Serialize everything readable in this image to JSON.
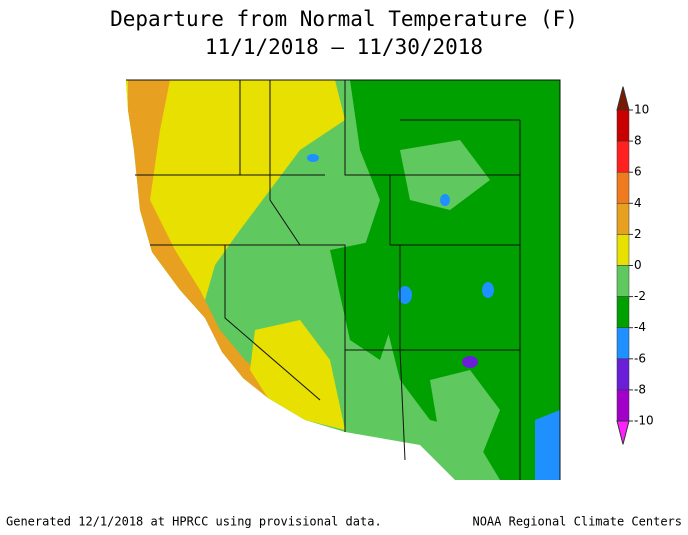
{
  "header": {
    "title": "Departure from Normal Temperature (F)",
    "subtitle": "11/1/2018 – 11/30/2018"
  },
  "colorbar": {
    "ticks": [
      10,
      8,
      6,
      4,
      2,
      0,
      -2,
      -4,
      -6,
      -8,
      -10
    ],
    "colors": [
      "#7a1a00",
      "#c80000",
      "#ff2020",
      "#f07a1e",
      "#e8a020",
      "#e8e000",
      "#5fc95f",
      "#00a000",
      "#1e90ff",
      "#6a1ed8",
      "#a000c8",
      "#ff20ff"
    ]
  },
  "footer": {
    "left": "Generated 12/1/2018 at HPRCC using provisional data.",
    "right": "NOAA Regional Climate Centers"
  }
}
